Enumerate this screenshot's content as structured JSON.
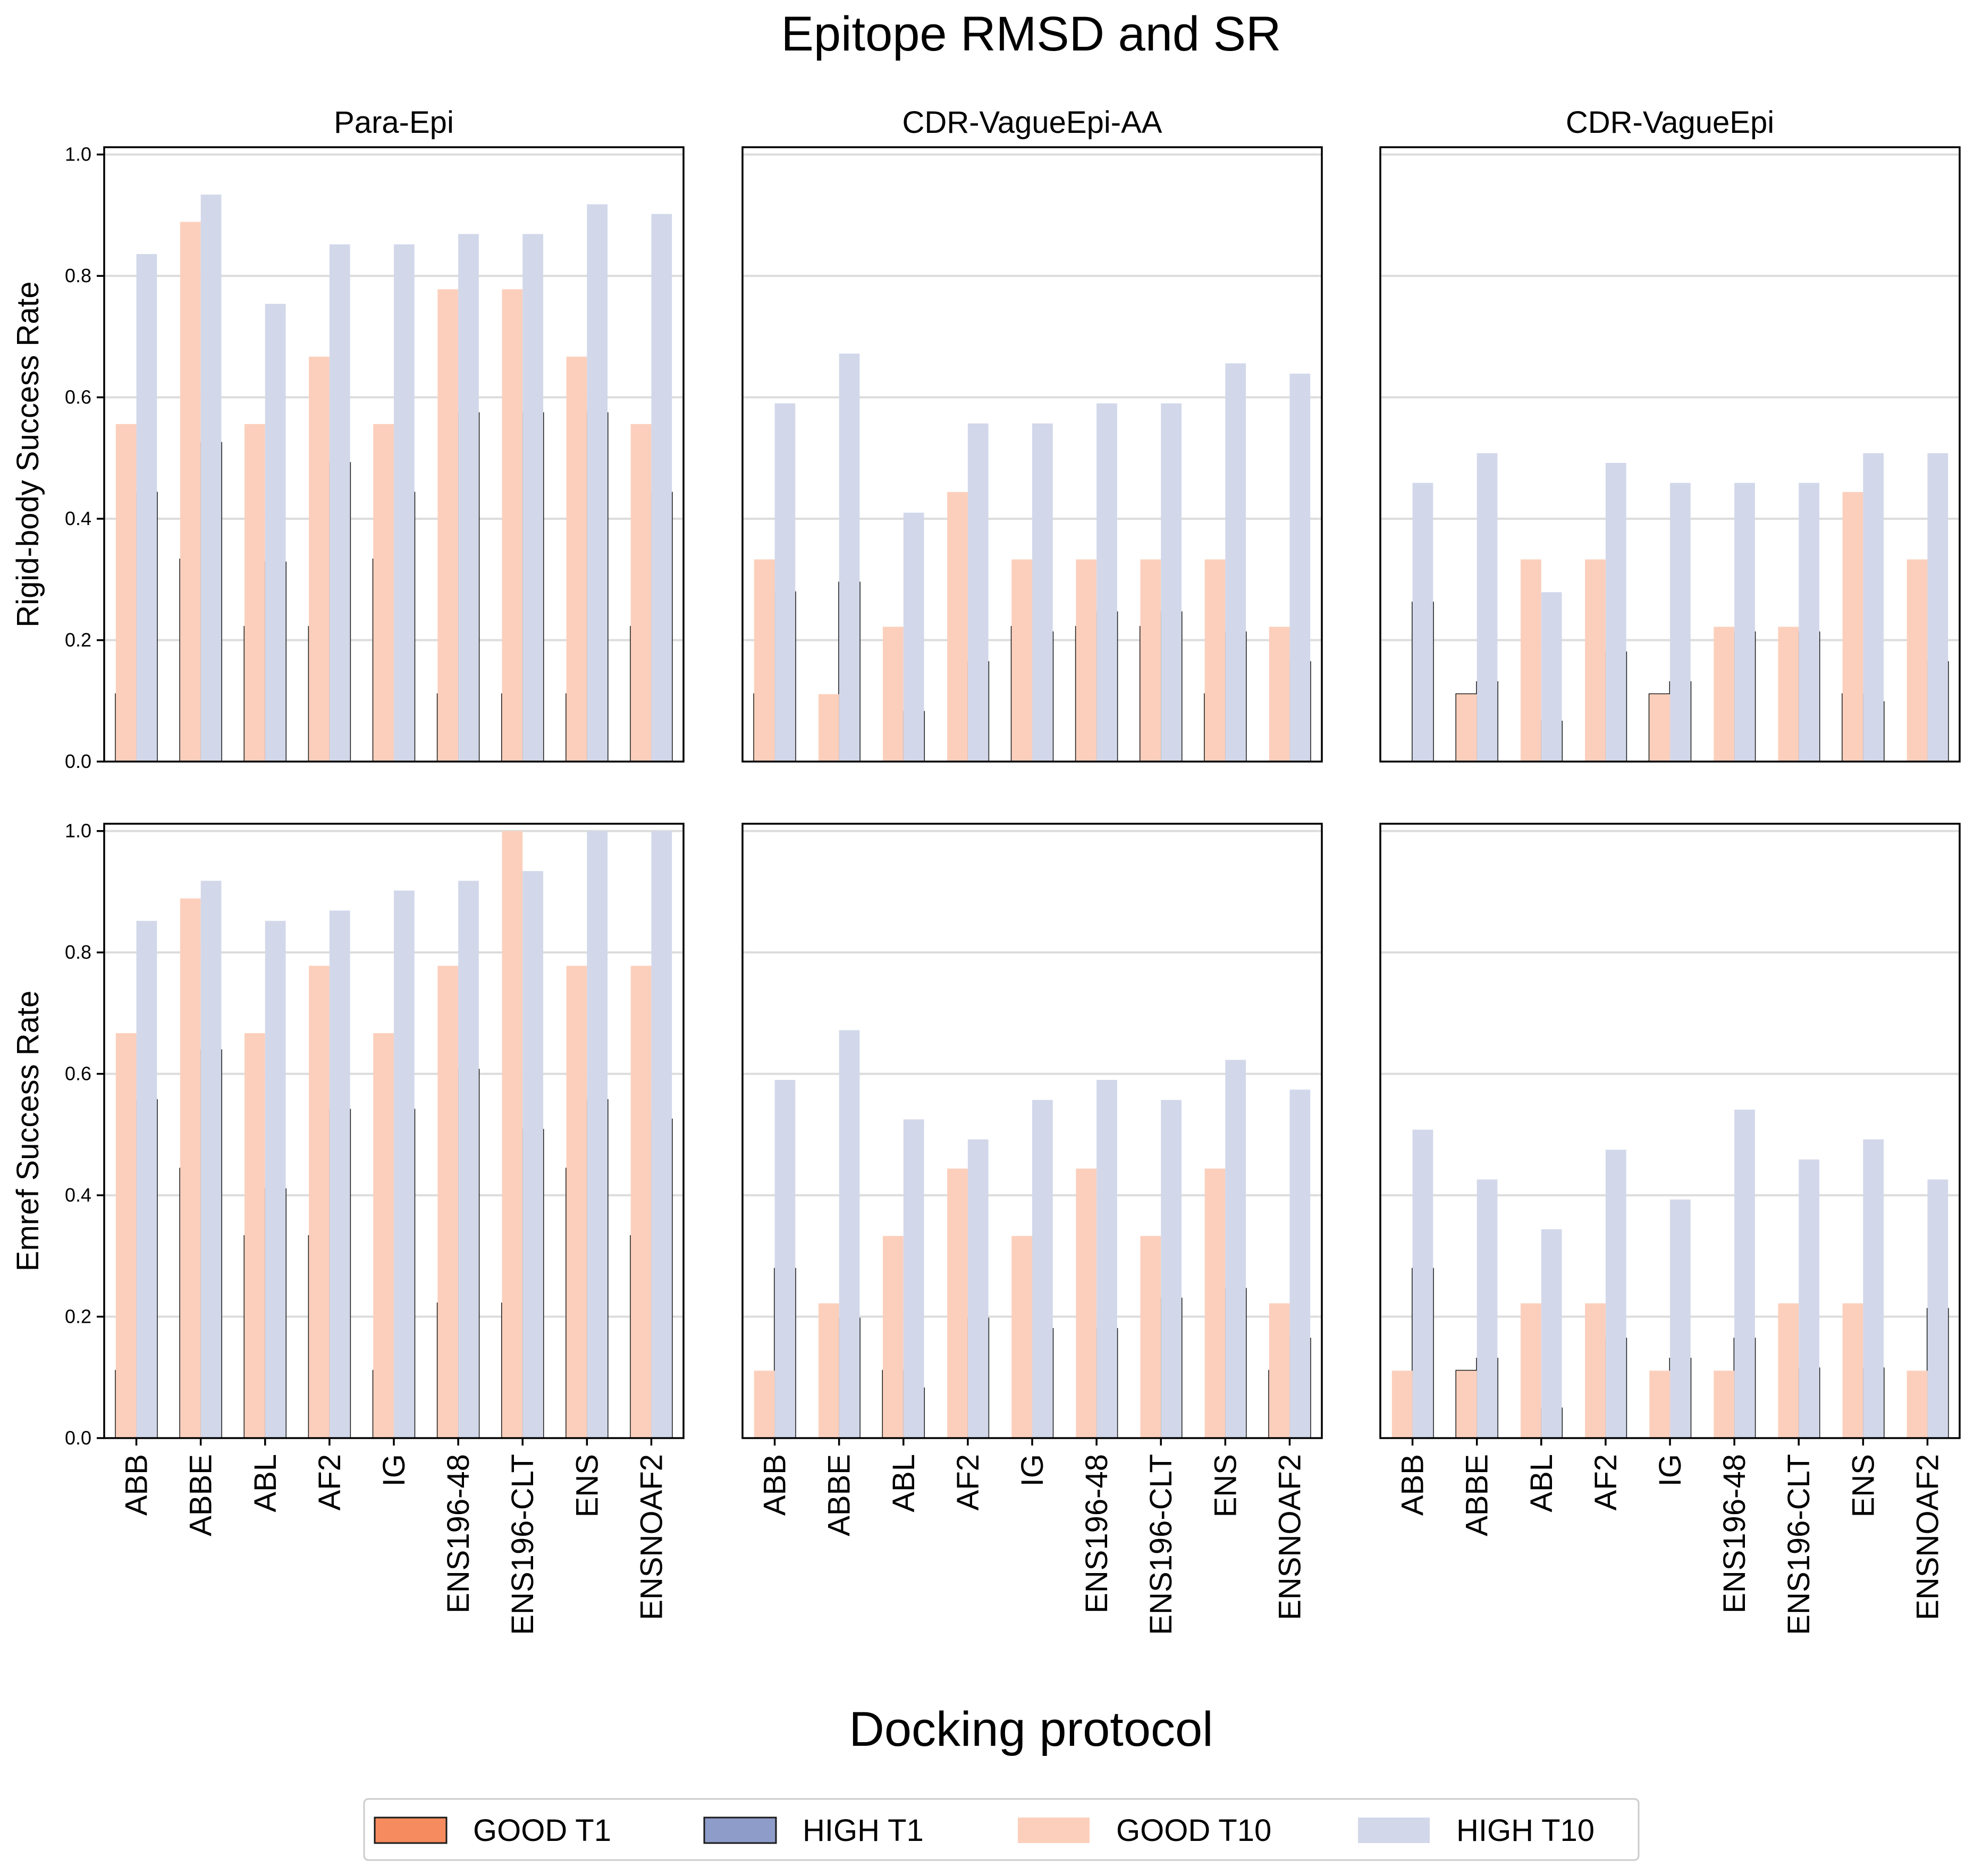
{
  "figure": {
    "title": "Epitope RMSD and SR",
    "xlabel": "Docking protocol"
  },
  "colors": {
    "good_t1": "#F58B5E",
    "high_t1": "#8E9CC9",
    "good_t10": "#FCCFBC",
    "high_t10": "#D2D8EA",
    "edge": "#1a1a1a",
    "grid": "#dcdcdc"
  },
  "legend": [
    {
      "key": "good_t1",
      "label": "GOOD T1",
      "edged": true
    },
    {
      "key": "high_t1",
      "label": "HIGH T1",
      "edged": true
    },
    {
      "key": "good_t10",
      "label": "GOOD T10",
      "edged": false
    },
    {
      "key": "high_t10",
      "label": "HIGH T10",
      "edged": false
    }
  ],
  "chart_data": {
    "type": "bar",
    "legend_position": "bottom-center",
    "grid": "horizontal",
    "categories": [
      "ABB",
      "ABBE",
      "ABL",
      "AF2",
      "IG",
      "ENS196-48",
      "ENS196-CLT",
      "ENS",
      "ENSNOAF2"
    ],
    "columns": [
      "Para-Epi",
      "CDR-VagueEpi-AA",
      "CDR-VagueEpi"
    ],
    "rows": [
      "Rigid-body Success Rate",
      "Emref Success Rate"
    ],
    "ylim": [
      0,
      1.0
    ],
    "yticks": [
      "0.0",
      "0.2",
      "0.4",
      "0.6",
      "0.8",
      "1.0"
    ],
    "panels": [
      {
        "title": "Para-Epi",
        "ylabel": "Rigid-body Success Rate",
        "series": [
          {
            "name": "GOOD T1",
            "key": "good_t1",
            "values": [
              0.111,
              0.333,
              0.222,
              0.222,
              0.333,
              0.111,
              0.111,
              0.111,
              0.222
            ]
          },
          {
            "name": "HIGH T1",
            "key": "high_t1",
            "values": [
              0.443,
              0.525,
              0.328,
              0.492,
              0.443,
              0.574,
              0.574,
              0.574,
              0.443
            ]
          },
          {
            "name": "GOOD T10",
            "key": "good_t10",
            "values": [
              0.556,
              0.889,
              0.556,
              0.667,
              0.556,
              0.778,
              0.778,
              0.667,
              0.556
            ]
          },
          {
            "name": "HIGH T10",
            "key": "high_t10",
            "values": [
              0.836,
              0.934,
              0.754,
              0.852,
              0.852,
              0.869,
              0.869,
              0.918,
              0.902
            ]
          }
        ]
      },
      {
        "title": "CDR-VagueEpi-AA",
        "ylabel": "",
        "series": [
          {
            "name": "GOOD T1",
            "key": "good_t1",
            "values": [
              0.111,
              0.0,
              0.0,
              0.0,
              0.222,
              0.222,
              0.222,
              0.111,
              0.0
            ]
          },
          {
            "name": "HIGH T1",
            "key": "high_t1",
            "values": [
              0.279,
              0.295,
              0.082,
              0.164,
              0.213,
              0.246,
              0.246,
              0.213,
              0.164
            ]
          },
          {
            "name": "GOOD T10",
            "key": "good_t10",
            "values": [
              0.333,
              0.111,
              0.222,
              0.444,
              0.333,
              0.333,
              0.333,
              0.333,
              0.222
            ]
          },
          {
            "name": "HIGH T10",
            "key": "high_t10",
            "values": [
              0.59,
              0.672,
              0.41,
              0.557,
              0.557,
              0.59,
              0.59,
              0.656,
              0.639
            ]
          }
        ]
      },
      {
        "title": "CDR-VagueEpi",
        "ylabel": "",
        "series": [
          {
            "name": "GOOD T1",
            "key": "good_t1",
            "values": [
              0.0,
              0.111,
              0.0,
              0.0,
              0.111,
              0.0,
              0.0,
              0.111,
              0.0
            ]
          },
          {
            "name": "HIGH T1",
            "key": "high_t1",
            "values": [
              0.262,
              0.131,
              0.066,
              0.18,
              0.131,
              0.213,
              0.213,
              0.098,
              0.164
            ]
          },
          {
            "name": "GOOD T10",
            "key": "good_t10",
            "values": [
              0.0,
              0.111,
              0.333,
              0.333,
              0.111,
              0.222,
              0.222,
              0.444,
              0.333
            ]
          },
          {
            "name": "HIGH T10",
            "key": "high_t10",
            "values": [
              0.459,
              0.508,
              0.279,
              0.492,
              0.459,
              0.459,
              0.459,
              0.508,
              0.508
            ]
          }
        ]
      },
      {
        "title": "",
        "ylabel": "Emref Success Rate",
        "series": [
          {
            "name": "GOOD T1",
            "key": "good_t1",
            "values": [
              0.111,
              0.444,
              0.333,
              0.333,
              0.111,
              0.222,
              0.222,
              0.444,
              0.333
            ]
          },
          {
            "name": "HIGH T1",
            "key": "high_t1",
            "values": [
              0.557,
              0.639,
              0.41,
              0.541,
              0.541,
              0.607,
              0.508,
              0.557,
              0.525
            ]
          },
          {
            "name": "GOOD T10",
            "key": "good_t10",
            "values": [
              0.667,
              0.889,
              0.667,
              0.778,
              0.667,
              0.778,
              1.0,
              0.778,
              0.778
            ]
          },
          {
            "name": "HIGH T10",
            "key": "high_t10",
            "values": [
              0.852,
              0.918,
              0.852,
              0.869,
              0.902,
              0.918,
              0.934,
              1.0,
              1.0
            ]
          }
        ]
      },
      {
        "title": "",
        "ylabel": "",
        "series": [
          {
            "name": "GOOD T1",
            "key": "good_t1",
            "values": [
              0.0,
              0.0,
              0.111,
              0.0,
              0.0,
              0.0,
              0.0,
              0.0,
              0.111
            ]
          },
          {
            "name": "HIGH T1",
            "key": "high_t1",
            "values": [
              0.279,
              0.197,
              0.082,
              0.197,
              0.18,
              0.18,
              0.23,
              0.246,
              0.164
            ]
          },
          {
            "name": "GOOD T10",
            "key": "good_t10",
            "values": [
              0.111,
              0.222,
              0.333,
              0.444,
              0.333,
              0.444,
              0.333,
              0.444,
              0.222
            ]
          },
          {
            "name": "HIGH T10",
            "key": "high_t10",
            "values": [
              0.59,
              0.672,
              0.525,
              0.492,
              0.557,
              0.59,
              0.557,
              0.623,
              0.574
            ]
          }
        ]
      },
      {
        "title": "",
        "ylabel": "",
        "series": [
          {
            "name": "GOOD T1",
            "key": "good_t1",
            "values": [
              0.0,
              0.111,
              0.0,
              0.0,
              0.0,
              0.0,
              0.0,
              0.0,
              0.0
            ]
          },
          {
            "name": "HIGH T1",
            "key": "high_t1",
            "values": [
              0.279,
              0.131,
              0.049,
              0.164,
              0.131,
              0.164,
              0.115,
              0.115,
              0.213
            ]
          },
          {
            "name": "GOOD T10",
            "key": "good_t10",
            "values": [
              0.111,
              0.111,
              0.222,
              0.222,
              0.111,
              0.111,
              0.222,
              0.222,
              0.111
            ]
          },
          {
            "name": "HIGH T10",
            "key": "high_t10",
            "values": [
              0.508,
              0.426,
              0.344,
              0.475,
              0.393,
              0.541,
              0.459,
              0.492,
              0.426
            ]
          }
        ]
      }
    ]
  }
}
